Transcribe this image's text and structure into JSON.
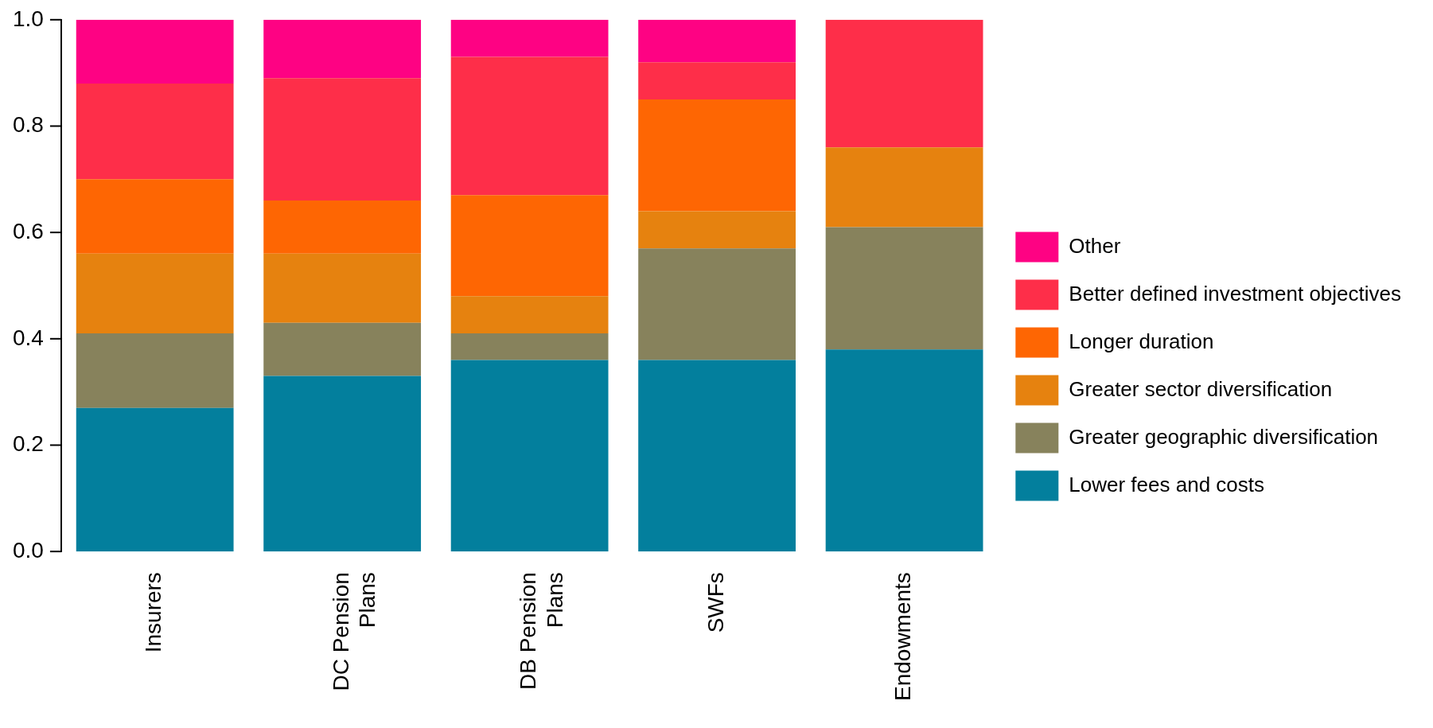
{
  "chart_data": {
    "type": "bar",
    "stacked": true,
    "categories": [
      "Insurers",
      "DC Pension Plans",
      "DB Pension Plans",
      "SWFs",
      "Endowments"
    ],
    "series": [
      {
        "name": "Lower fees and costs",
        "color": "#037f9d",
        "values": [
          0.27,
          0.33,
          0.36,
          0.36,
          0.38
        ]
      },
      {
        "name": "Greater geographic diversification",
        "color": "#87825c",
        "values": [
          0.14,
          0.1,
          0.05,
          0.21,
          0.23
        ]
      },
      {
        "name": "Greater sector diversification",
        "color": "#e6820f",
        "values": [
          0.15,
          0.13,
          0.07,
          0.07,
          0.15
        ]
      },
      {
        "name": "Longer duration",
        "color": "#fe6603",
        "values": [
          0.14,
          0.1,
          0.19,
          0.21,
          0
        ]
      },
      {
        "name": "Better defined investment objectives",
        "color": "#fe2e49",
        "values": [
          0.18,
          0.23,
          0.26,
          0.07,
          0.24
        ]
      },
      {
        "name": "Other",
        "color": "#fe0283",
        "values": [
          0.12,
          0.11,
          0.07,
          0.08,
          0
        ]
      }
    ],
    "ylim": [
      0,
      1
    ],
    "yticks": [
      {
        "value": 0,
        "label": "0.0"
      },
      {
        "value": 0.2,
        "label": "0.2"
      },
      {
        "value": 0.4,
        "label": "0.4"
      },
      {
        "value": 0.6,
        "label": "0.6"
      },
      {
        "value": 0.8,
        "label": "0.8"
      },
      {
        "value": 1,
        "label": "1.0"
      }
    ],
    "grid": false,
    "legend": "right"
  }
}
